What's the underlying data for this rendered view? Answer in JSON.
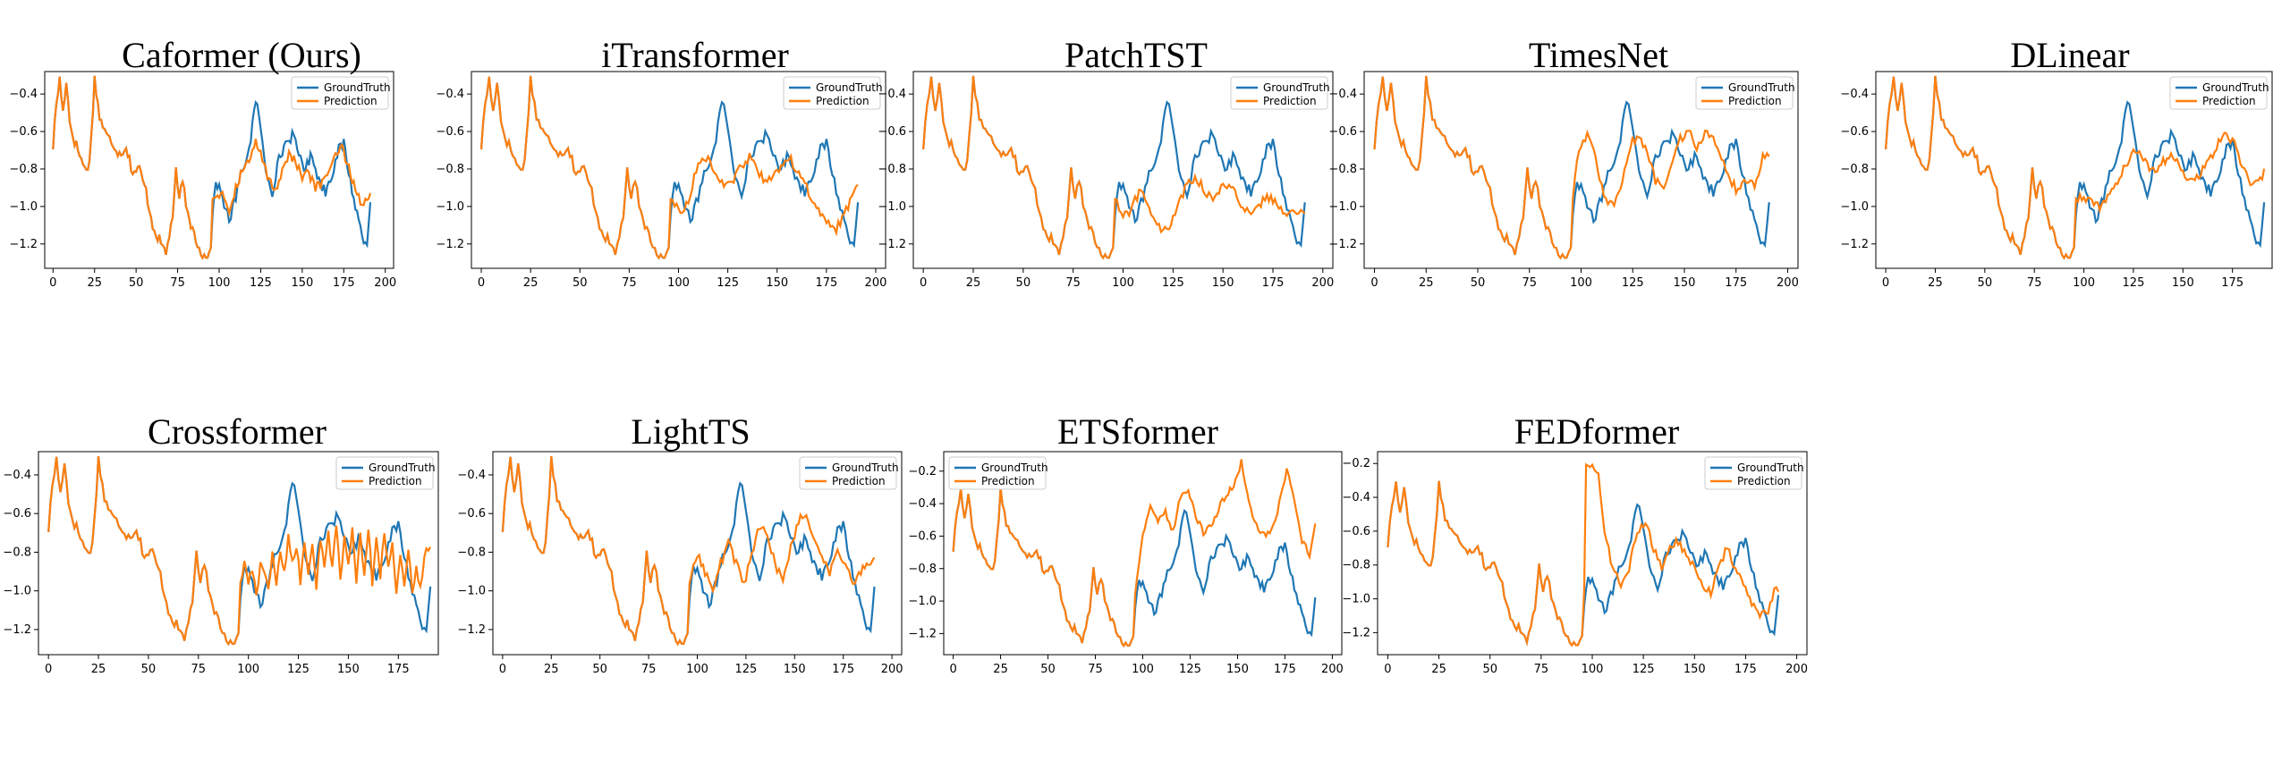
{
  "colors": {
    "ground_truth": "#1f77b4",
    "prediction": "#ff7f0e"
  },
  "chart_data": [
    {
      "type": "line",
      "title": "Caformer (Ours)",
      "variant": "caformer",
      "xticks": [
        0,
        25,
        50,
        75,
        100,
        125,
        150,
        175,
        200
      ],
      "yticks": [
        -0.4,
        -0.6,
        -0.8,
        -1.0,
        -1.2
      ],
      "xlim": [
        -5,
        205
      ],
      "ylim": [
        -1.33,
        -0.28
      ],
      "legend_position": "top-right",
      "series": [
        {
          "name": "GroundTruth"
        },
        {
          "name": "Prediction"
        }
      ]
    },
    {
      "type": "line",
      "title": "iTransformer",
      "variant": "itransformer",
      "xticks": [
        0,
        25,
        50,
        75,
        100,
        125,
        150,
        175,
        200
      ],
      "yticks": [
        -0.4,
        -0.6,
        -0.8,
        -1.0,
        -1.2
      ],
      "xlim": [
        -5,
        205
      ],
      "ylim": [
        -1.33,
        -0.28
      ],
      "legend_position": "top-right",
      "series": [
        {
          "name": "GroundTruth"
        },
        {
          "name": "Prediction"
        }
      ]
    },
    {
      "type": "line",
      "title": "PatchTST",
      "variant": "patchtst",
      "xticks": [
        0,
        25,
        50,
        75,
        100,
        125,
        150,
        175,
        200
      ],
      "yticks": [
        -0.4,
        -0.6,
        -0.8,
        -1.0,
        -1.2
      ],
      "xlim": [
        -5,
        205
      ],
      "ylim": [
        -1.33,
        -0.28
      ],
      "legend_position": "top-right",
      "series": [
        {
          "name": "GroundTruth"
        },
        {
          "name": "Prediction"
        }
      ]
    },
    {
      "type": "line",
      "title": "TimesNet",
      "variant": "timesnet",
      "xticks": [
        0,
        25,
        50,
        75,
        100,
        125,
        150,
        175,
        200
      ],
      "yticks": [
        -0.4,
        -0.6,
        -0.8,
        -1.0,
        -1.2
      ],
      "xlim": [
        -5,
        205
      ],
      "ylim": [
        -1.33,
        -0.28
      ],
      "legend_position": "top-right",
      "series": [
        {
          "name": "GroundTruth"
        },
        {
          "name": "Prediction"
        }
      ]
    },
    {
      "type": "line",
      "title": "DLinear",
      "variant": "dlinear",
      "xticks": [
        0,
        25,
        50,
        75,
        100,
        125,
        150,
        175
      ],
      "yticks": [
        -0.4,
        -0.6,
        -0.8,
        -1.0,
        -1.2
      ],
      "xlim": [
        -5,
        195
      ],
      "ylim": [
        -1.33,
        -0.28
      ],
      "legend_position": "top-right",
      "series": [
        {
          "name": "GroundTruth"
        },
        {
          "name": "Prediction"
        }
      ]
    },
    {
      "type": "line",
      "title": "Crossformer",
      "variant": "crossformer",
      "xticks": [
        0,
        25,
        50,
        75,
        100,
        125,
        150,
        175
      ],
      "yticks": [
        -0.4,
        -0.6,
        -0.8,
        -1.0,
        -1.2
      ],
      "xlim": [
        -5,
        195
      ],
      "ylim": [
        -1.33,
        -0.28
      ],
      "legend_position": "top-right",
      "series": [
        {
          "name": "GroundTruth"
        },
        {
          "name": "Prediction"
        }
      ]
    },
    {
      "type": "line",
      "title": "LightTS",
      "variant": "lightts",
      "xticks": [
        0,
        25,
        50,
        75,
        100,
        125,
        150,
        175,
        200
      ],
      "yticks": [
        -0.4,
        -0.6,
        -0.8,
        -1.0,
        -1.2
      ],
      "xlim": [
        -5,
        205
      ],
      "ylim": [
        -1.33,
        -0.28
      ],
      "legend_position": "top-right",
      "series": [
        {
          "name": "GroundTruth"
        },
        {
          "name": "Prediction"
        }
      ]
    },
    {
      "type": "line",
      "title": "ETSformer",
      "variant": "etsformer",
      "xticks": [
        0,
        25,
        50,
        75,
        100,
        125,
        150,
        175,
        200
      ],
      "yticks": [
        -0.2,
        -0.4,
        -0.6,
        -0.8,
        -1.0,
        -1.2
      ],
      "xlim": [
        -5,
        205
      ],
      "ylim": [
        -1.33,
        -0.08
      ],
      "legend_position": "top-left",
      "series": [
        {
          "name": "GroundTruth"
        },
        {
          "name": "Prediction"
        }
      ]
    },
    {
      "type": "line",
      "title": "FEDformer",
      "variant": "fedformer",
      "xticks": [
        0,
        25,
        50,
        75,
        100,
        125,
        150,
        175,
        200
      ],
      "yticks": [
        -0.2,
        -0.4,
        -0.6,
        -0.8,
        -1.0,
        -1.2
      ],
      "xlim": [
        -5,
        205
      ],
      "ylim": [
        -1.33,
        -0.13
      ],
      "legend_position": "top-right",
      "series": [
        {
          "name": "GroundTruth"
        },
        {
          "name": "Prediction"
        }
      ]
    }
  ]
}
